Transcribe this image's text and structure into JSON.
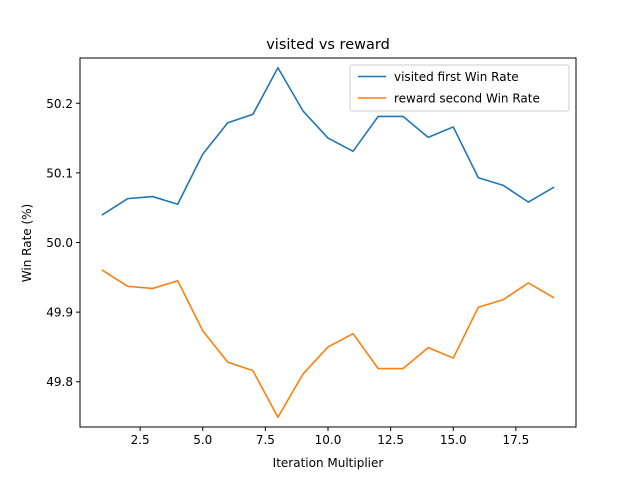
{
  "chart_data": {
    "type": "line",
    "title": "visited vs reward",
    "xlabel": "Iteration Multiplier",
    "ylabel": "Win Rate (%)",
    "xlim": [
      0.1,
      19.9
    ],
    "ylim": [
      49.735,
      50.265
    ],
    "xticks": [
      2.5,
      5.0,
      7.5,
      10.0,
      12.5,
      15.0,
      17.5
    ],
    "xtick_labels": [
      "2.5",
      "5.0",
      "7.5",
      "10.0",
      "12.5",
      "15.0",
      "17.5"
    ],
    "yticks": [
      49.8,
      49.9,
      50.0,
      50.1,
      50.2
    ],
    "ytick_labels": [
      "49.8",
      "49.9",
      "50.0",
      "50.1",
      "50.2"
    ],
    "grid": false,
    "legend_position": "top-right",
    "x": [
      1,
      2,
      3,
      4,
      5,
      6,
      7,
      8,
      9,
      10,
      11,
      12,
      13,
      14,
      15,
      16,
      17,
      18,
      19
    ],
    "series": [
      {
        "name": "visited first Win Rate",
        "color": "#1f77b4",
        "values": [
          50.04,
          50.063,
          50.066,
          50.055,
          50.127,
          50.172,
          50.184,
          50.251,
          50.189,
          50.15,
          50.131,
          50.181,
          50.181,
          50.151,
          50.166,
          50.093,
          50.082,
          50.058,
          50.079
        ]
      },
      {
        "name": "reward second Win Rate",
        "color": "#ff7f0e",
        "values": [
          49.96,
          49.937,
          49.934,
          49.945,
          49.873,
          49.828,
          49.816,
          49.749,
          49.811,
          49.85,
          49.869,
          49.819,
          49.819,
          49.849,
          49.834,
          49.907,
          49.918,
          49.942,
          49.921
        ]
      }
    ]
  }
}
